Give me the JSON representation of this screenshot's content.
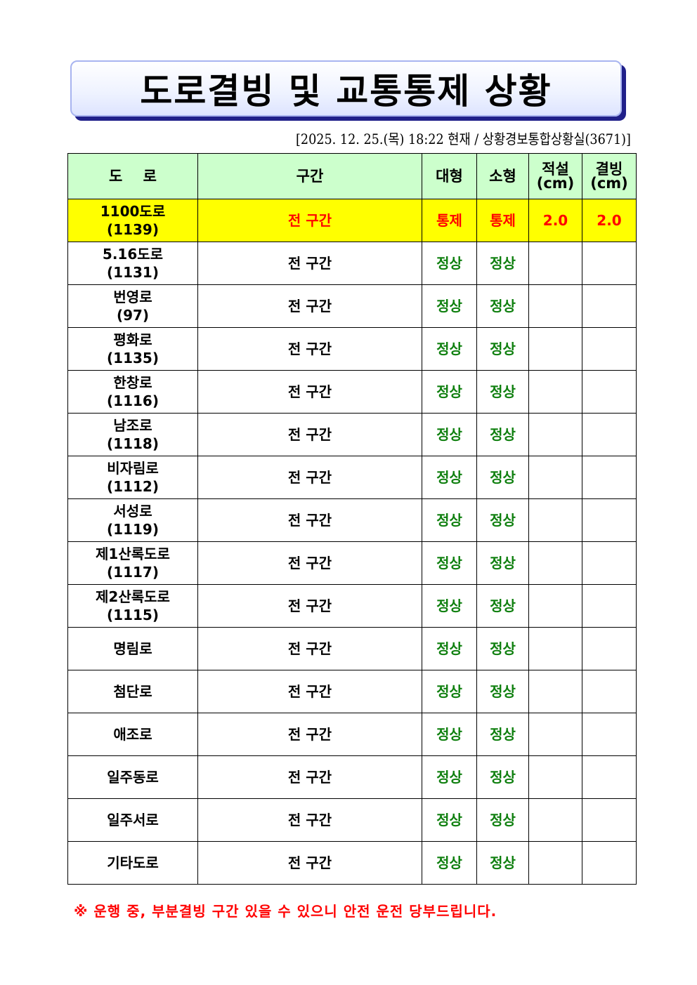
{
  "title": "도로결빙 및 교통통제 상황",
  "subtitle": "[2025. 12. 25.(목) 18:22 현재 / 상황경보통합상황실(3671)]",
  "headers": {
    "road": "도    로",
    "section": "구간",
    "large": "대형",
    "small": "소형",
    "snow": "적설",
    "snow_unit": "(cm)",
    "ice": "결빙",
    "ice_unit": "(cm)"
  },
  "rows": [
    {
      "name": "1100도로",
      "code": "(1139)",
      "section": "전 구간",
      "large": "통제",
      "small": "통제",
      "snow": "2.0",
      "ice": "2.0"
    },
    {
      "name": "5.16도로",
      "code": "(1131)",
      "section": "전 구간",
      "large": "정상",
      "small": "정상",
      "snow": "",
      "ice": ""
    },
    {
      "name": "번영로",
      "code": "(97)",
      "section": "전 구간",
      "large": "정상",
      "small": "정상",
      "snow": "",
      "ice": ""
    },
    {
      "name": "평화로",
      "code": "(1135)",
      "section": "전 구간",
      "large": "정상",
      "small": "정상",
      "snow": "",
      "ice": ""
    },
    {
      "name": "한창로",
      "code": "(1116)",
      "section": "전 구간",
      "large": "정상",
      "small": "정상",
      "snow": "",
      "ice": ""
    },
    {
      "name": "남조로",
      "code": "(1118)",
      "section": "전 구간",
      "large": "정상",
      "small": "정상",
      "snow": "",
      "ice": ""
    },
    {
      "name": "비자림로",
      "code": "(1112)",
      "section": "전 구간",
      "large": "정상",
      "small": "정상",
      "snow": "",
      "ice": ""
    },
    {
      "name": "서성로",
      "code": "(1119)",
      "section": "전 구간",
      "large": "정상",
      "small": "정상",
      "snow": "",
      "ice": ""
    },
    {
      "name": "제1산록도로",
      "code": "(1117)",
      "section": "전 구간",
      "large": "정상",
      "small": "정상",
      "snow": "",
      "ice": ""
    },
    {
      "name": "제2산록도로",
      "code": "(1115)",
      "section": "전 구간",
      "large": "정상",
      "small": "정상",
      "snow": "",
      "ice": ""
    },
    {
      "name": "명림로",
      "code": "",
      "section": "전 구간",
      "large": "정상",
      "small": "정상",
      "snow": "",
      "ice": ""
    },
    {
      "name": "첨단로",
      "code": "",
      "section": "전 구간",
      "large": "정상",
      "small": "정상",
      "snow": "",
      "ice": ""
    },
    {
      "name": "애조로",
      "code": "",
      "section": "전 구간",
      "large": "정상",
      "small": "정상",
      "snow": "",
      "ice": ""
    },
    {
      "name": "일주동로",
      "code": "",
      "section": "전 구간",
      "large": "정상",
      "small": "정상",
      "snow": "",
      "ice": ""
    },
    {
      "name": "일주서로",
      "code": "",
      "section": "전 구간",
      "large": "정상",
      "small": "정상",
      "snow": "",
      "ice": ""
    },
    {
      "name": "기타도로",
      "code": "",
      "section": "전 구간",
      "large": "정상",
      "small": "정상",
      "snow": "",
      "ice": ""
    }
  ],
  "footer": "※ 운행 중, 부분결빙 구간 있을 수 있으니 안전 운전 당부드립니다.",
  "colors": {
    "header_bg": "#ccffcc",
    "highlight_bg": "#ffff00",
    "control": "#ff0000",
    "normal": "#108010"
  }
}
